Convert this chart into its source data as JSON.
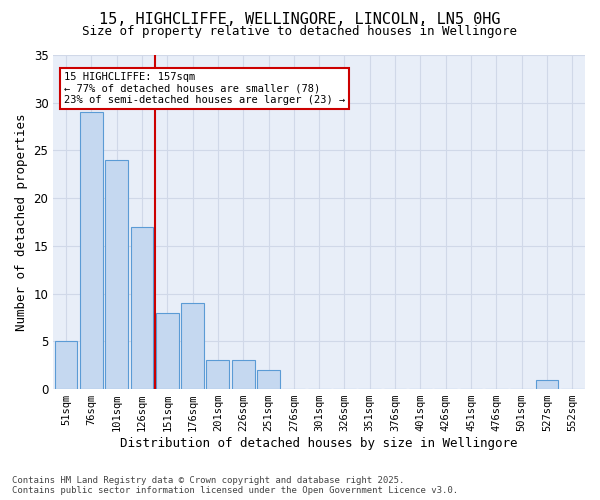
{
  "title1": "15, HIGHCLIFFE, WELLINGORE, LINCOLN, LN5 0HG",
  "title2": "Size of property relative to detached houses in Wellingore",
  "xlabel": "Distribution of detached houses by size in Wellingore",
  "ylabel": "Number of detached properties",
  "categories": [
    "51sqm",
    "76sqm",
    "101sqm",
    "126sqm",
    "151sqm",
    "176sqm",
    "201sqm",
    "226sqm",
    "251sqm",
    "276sqm",
    "301sqm",
    "326sqm",
    "351sqm",
    "376sqm",
    "401sqm",
    "426sqm",
    "451sqm",
    "476sqm",
    "501sqm",
    "527sqm",
    "552sqm"
  ],
  "values": [
    5,
    29,
    24,
    17,
    8,
    9,
    3,
    3,
    2,
    0,
    0,
    0,
    0,
    0,
    0,
    0,
    0,
    0,
    0,
    1,
    0
  ],
  "bar_color": "#c5d8f0",
  "bar_edge_color": "#5b9bd5",
  "vline_x": 4,
  "vline_color": "#cc0000",
  "annotation_text": "15 HIGHCLIFFE: 157sqm\n← 77% of detached houses are smaller (78)\n23% of semi-detached houses are larger (23) →",
  "annotation_box_color": "#cc0000",
  "ylim": [
    0,
    35
  ],
  "yticks": [
    0,
    5,
    10,
    15,
    20,
    25,
    30,
    35
  ],
  "grid_color": "#d0d8e8",
  "bg_color": "#e8eef8",
  "footer": "Contains HM Land Registry data © Crown copyright and database right 2025.\nContains public sector information licensed under the Open Government Licence v3.0."
}
